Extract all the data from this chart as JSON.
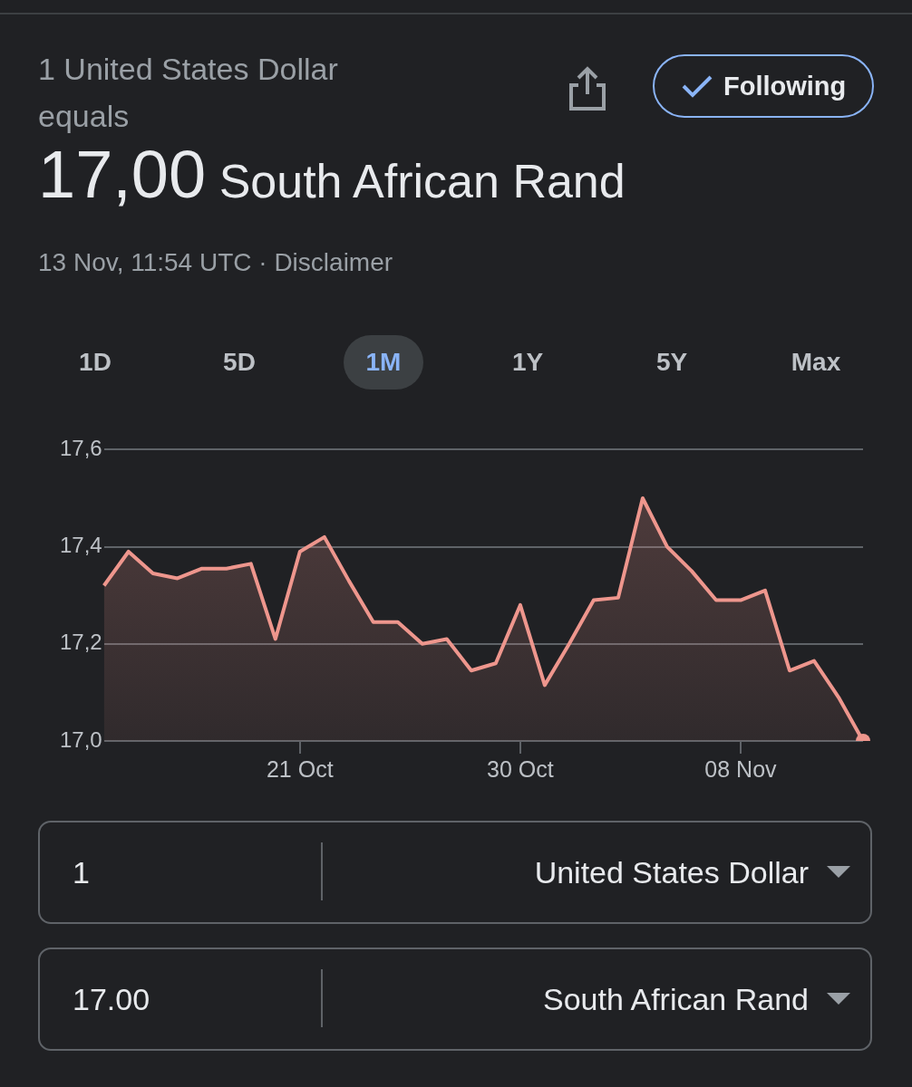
{
  "chart_data": {
    "type": "area",
    "title": "1 United States Dollar equals",
    "subtitle": "17,00 South African Rand",
    "annotations": [
      "13 Nov, 11:54 UTC · Disclaimer",
      "Following",
      "1D",
      "5D",
      "1M",
      "1Y",
      "5Y",
      "Max",
      "1",
      "United States Dollar",
      "17.00",
      "South African Rand"
    ],
    "categories": [
      null,
      null,
      null,
      null,
      null,
      null,
      null,
      null,
      "21 Oct",
      null,
      null,
      null,
      null,
      null,
      null,
      null,
      null,
      "30 Oct",
      null,
      null,
      null,
      null,
      null,
      null,
      null,
      null,
      "08 Nov",
      null,
      null,
      null,
      null,
      null
    ],
    "series": [
      {
        "color": "#ee968d",
        "values": [
          17.32,
          17.39,
          17.345,
          17.335,
          17.355,
          17.355,
          17.365,
          17.21,
          17.39,
          17.42,
          17.33,
          17.245,
          17.245,
          17.2,
          17.21,
          17.145,
          17.16,
          17.28,
          17.115,
          17.2,
          17.29,
          17.295,
          17.5,
          17.4,
          17.35,
          17.29,
          17.29,
          17.31,
          17.145,
          17.165,
          17.09,
          17.0
        ]
      }
    ],
    "ylim": [
      17.0,
      17.6
    ],
    "yticks": [
      {
        "value": 17.0,
        "label": "17,0"
      },
      {
        "value": 17.2,
        "label": "17,2"
      },
      {
        "value": 17.4,
        "label": "17,4"
      },
      {
        "value": 17.6,
        "label": "17,6"
      }
    ],
    "grid": "y",
    "legend": false
  }
}
